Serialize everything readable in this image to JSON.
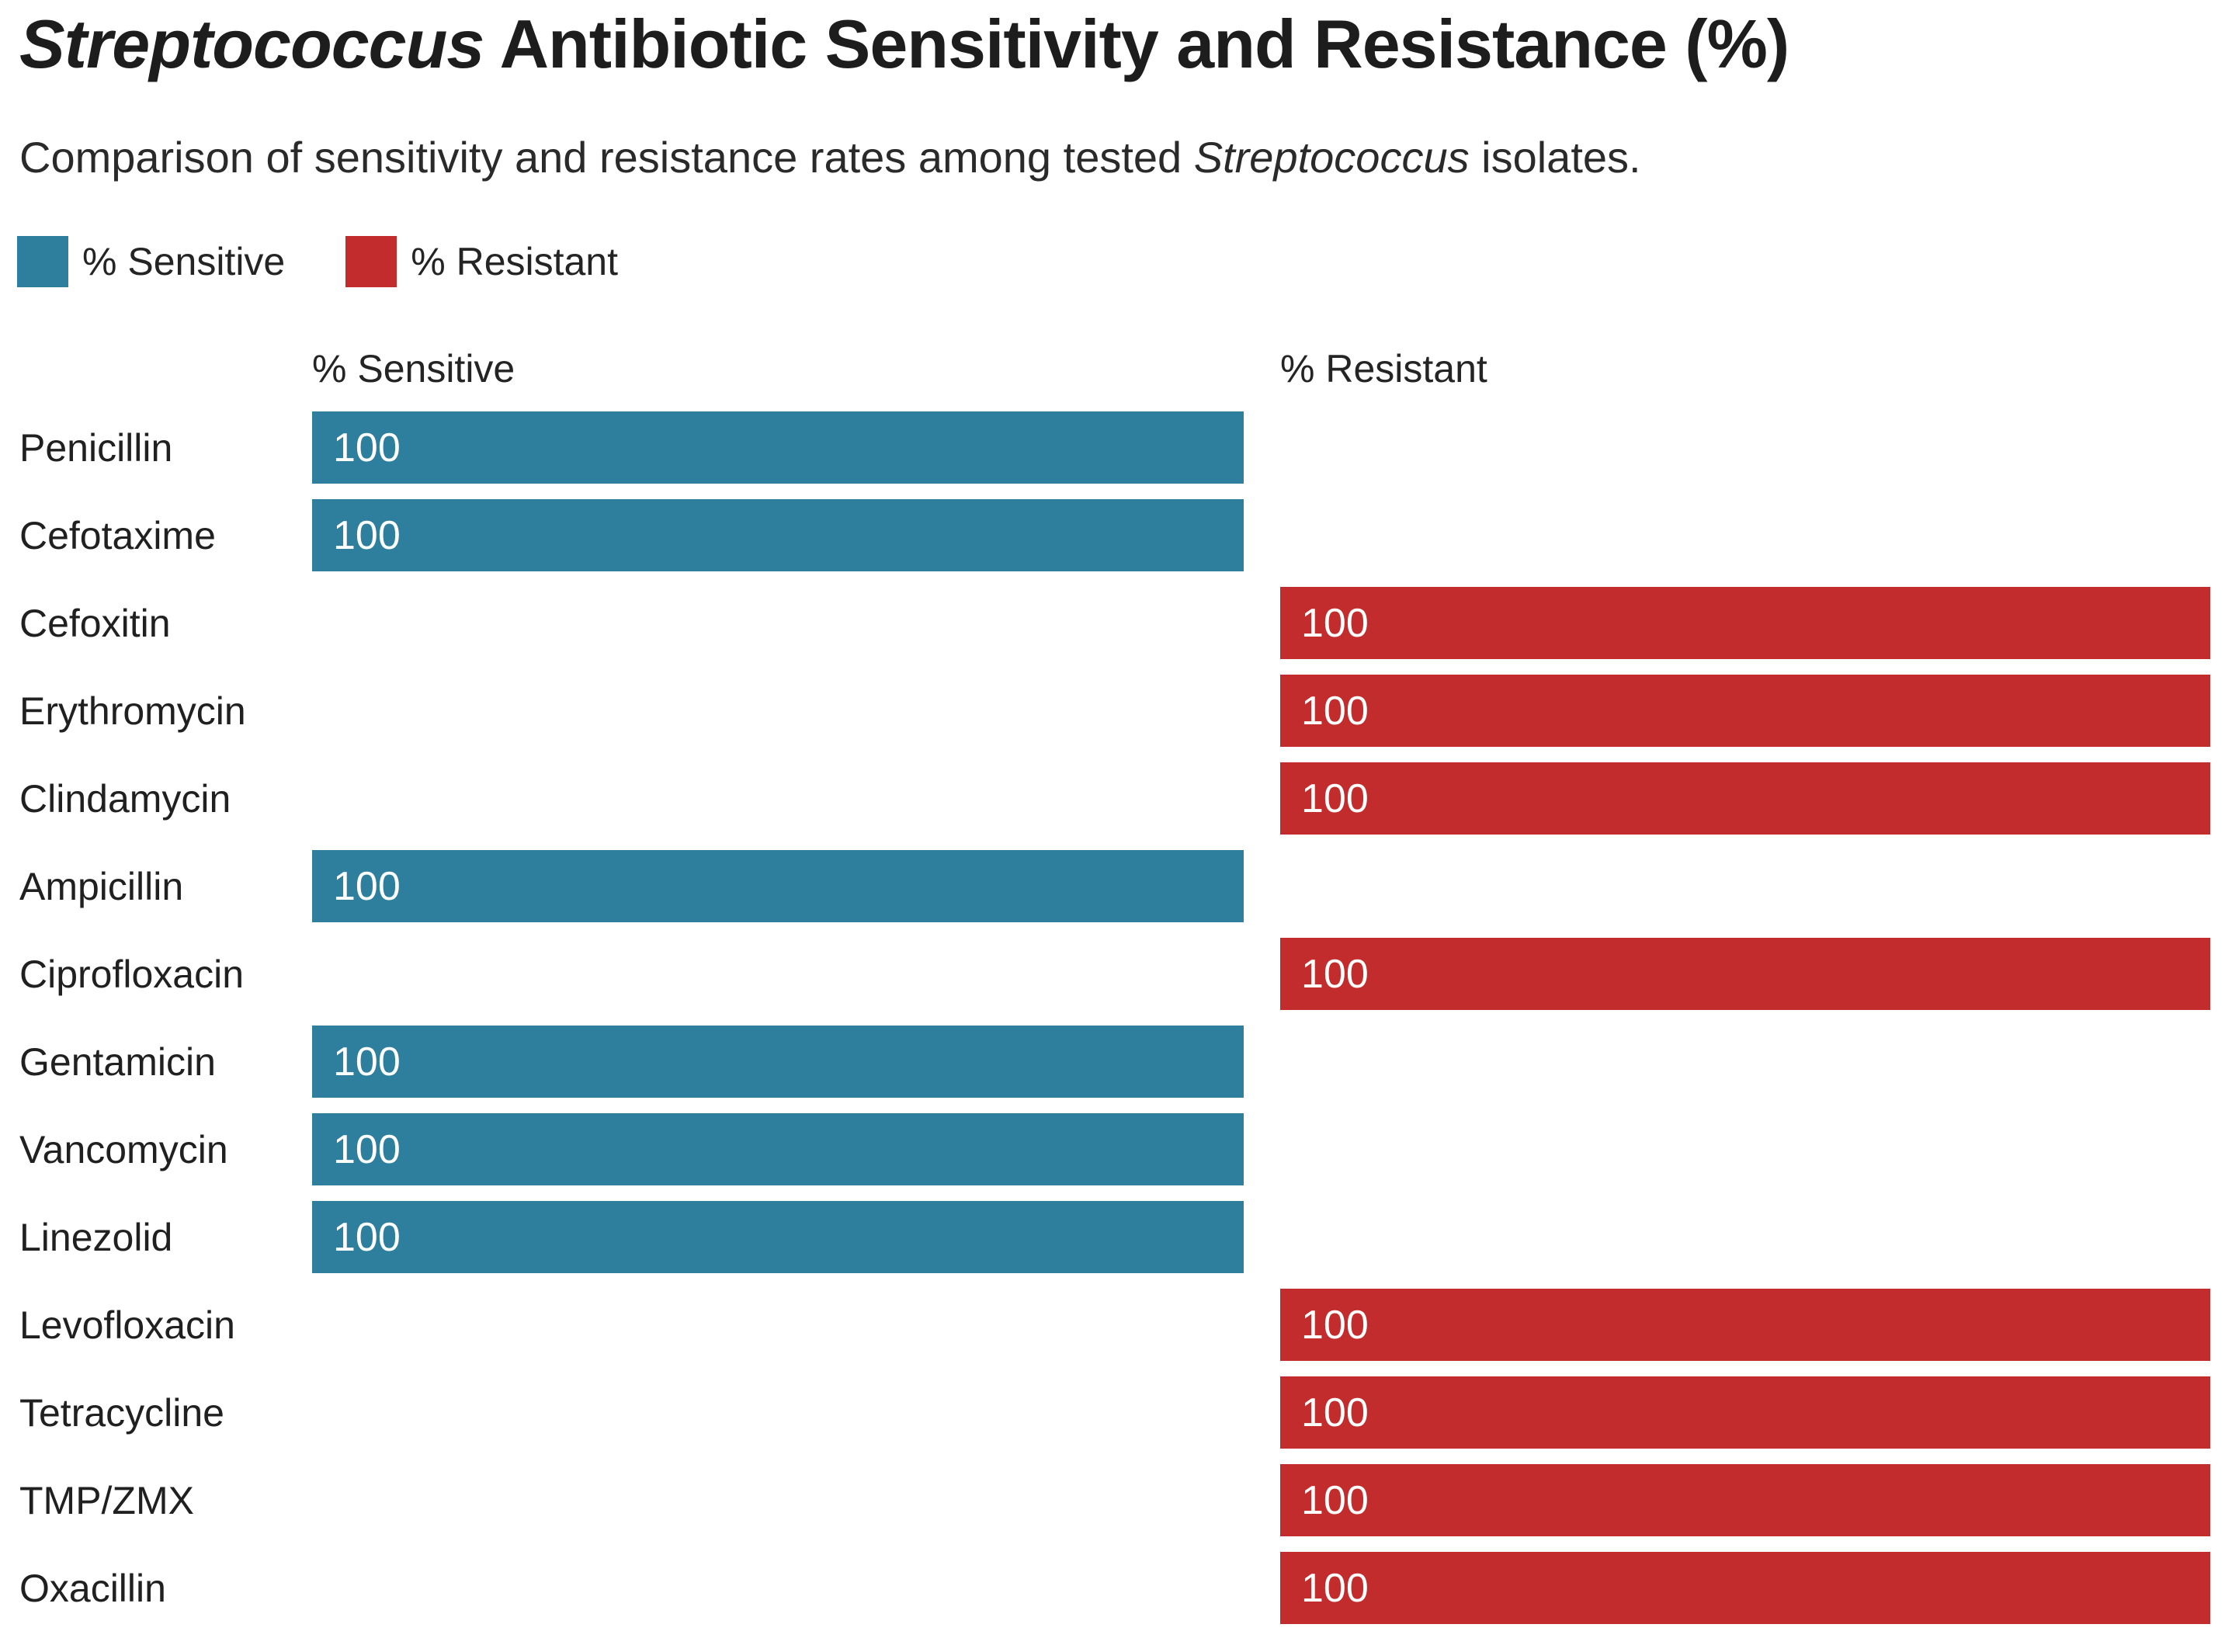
{
  "title": {
    "italic": "Streptococcus",
    "rest": " Antibiotic Sensitivity and Resistance (%)"
  },
  "subtitle": {
    "before": "Comparison of sensitivity and resistance rates among tested ",
    "italic": "Streptococcus",
    "after": " isolates."
  },
  "legend": [
    {
      "label": "% Sensitive",
      "color": "#2D7F9D"
    },
    {
      "label": "% Resistant",
      "color": "#C32C2C"
    }
  ],
  "columns": {
    "sensitive": "% Sensitive",
    "resistant": "% Resistant"
  },
  "chart_data": {
    "type": "bar",
    "orientation": "horizontal",
    "title": "Streptococcus Antibiotic Sensitivity and Resistance (%)",
    "subtitle": "Comparison of sensitivity and resistance rates among tested Streptococcus isolates.",
    "legend_position": "top",
    "grid": false,
    "value_range": [
      0,
      100
    ],
    "value_labels_shown": true,
    "categories": [
      "Penicillin",
      "Cefotaxime",
      "Cefoxitin",
      "Erythromycin",
      "Clindamycin",
      "Ampicillin",
      "Ciprofloxacin",
      "Gentamicin",
      "Vancomycin",
      "Linezolid",
      "Levofloxacin",
      "Tetracycline",
      "TMP/ZMX",
      "Oxacillin"
    ],
    "series": [
      {
        "name": "% Sensitive",
        "color": "#2D7F9D",
        "values": [
          100,
          100,
          null,
          null,
          null,
          100,
          null,
          100,
          100,
          100,
          null,
          null,
          null,
          null
        ]
      },
      {
        "name": "% Resistant",
        "color": "#C32C2C",
        "values": [
          null,
          null,
          100,
          100,
          100,
          null,
          100,
          null,
          null,
          null,
          100,
          100,
          100,
          100
        ]
      }
    ]
  }
}
